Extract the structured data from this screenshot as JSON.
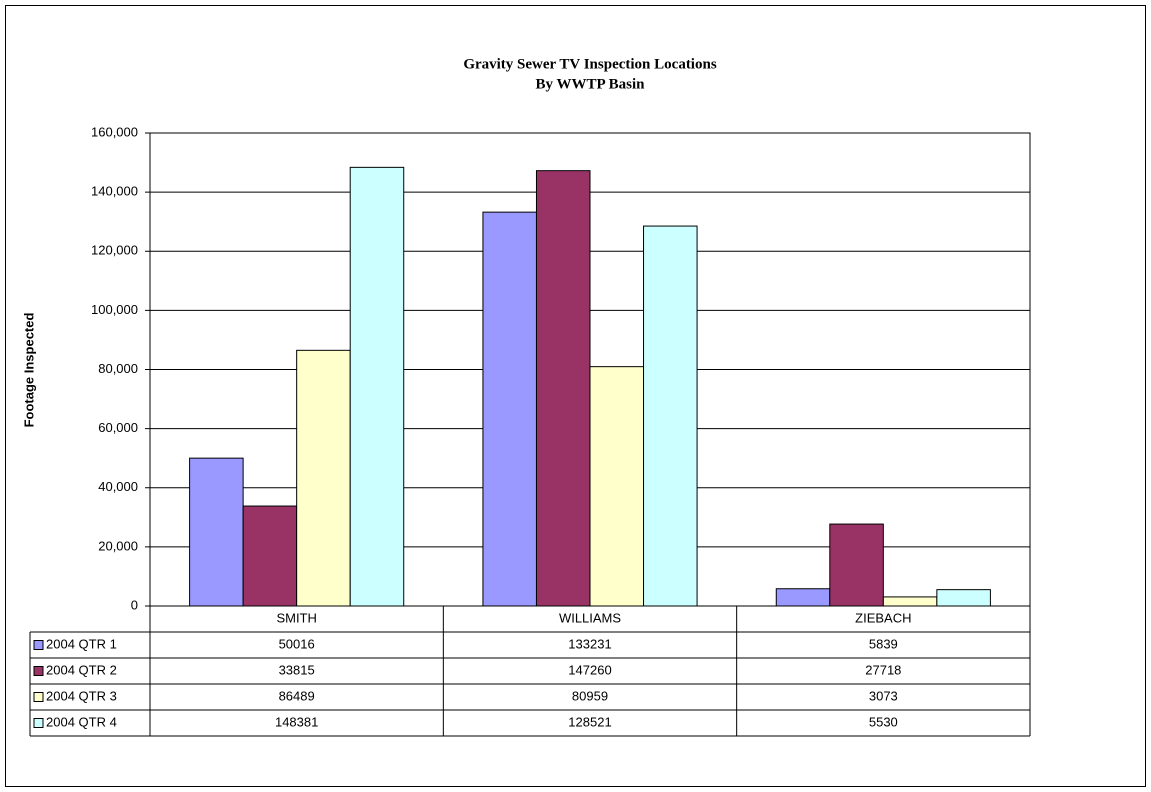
{
  "chart_data": {
    "type": "bar",
    "title": "Gravity Sewer TV Inspection Locations",
    "subtitle": "By WWTP Basin",
    "y_label": "Footage Inspected",
    "categories": [
      "SMITH",
      "WILLIAMS",
      "ZIEBACH"
    ],
    "series": [
      {
        "name": "2004 QTR 1",
        "color": "#9999ff",
        "values": [
          50016,
          133231,
          5839
        ]
      },
      {
        "name": "2004 QTR 2",
        "color": "#993366",
        "values": [
          33815,
          147260,
          27718
        ]
      },
      {
        "name": "2004 QTR 3",
        "color": "#ffffcc",
        "values": [
          86489,
          80959,
          3073
        ]
      },
      {
        "name": "2004 QTR 4",
        "color": "#ccffff",
        "values": [
          148381,
          128521,
          5530
        ]
      }
    ],
    "ylim": [
      0,
      160000
    ],
    "yticks": [
      0,
      {
        "value": 20000,
        "label": "20,000"
      },
      {
        "value": 40000,
        "label": "40,000"
      },
      {
        "value": 60000,
        "label": "60,000"
      },
      {
        "value": 80000,
        "label": "80,000"
      },
      {
        "value": 100000,
        "label": "100,000"
      },
      {
        "value": 120000,
        "label": "120,000"
      },
      {
        "value": 140000,
        "label": "140,000"
      },
      {
        "value": 160000,
        "label": "160,000"
      }
    ],
    "grid": true,
    "data_table": true
  }
}
